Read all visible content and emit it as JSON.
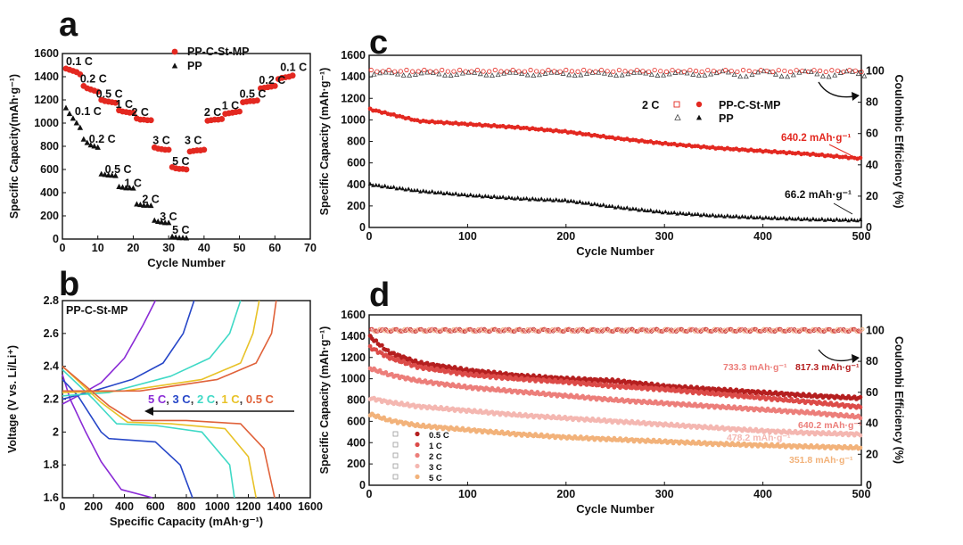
{
  "colors": {
    "red": "#e32820",
    "black": "#111111",
    "c05": "#b51f1f",
    "c1": "#dc4b48",
    "c2": "#ec7e7a",
    "c3": "#f4b7b1",
    "c5": "#f2b27a",
    "gray": "#888888",
    "purple": "#8a2bd6",
    "blue": "#2747c8",
    "teal": "#3fd9c6",
    "yellow": "#e8c227",
    "orange": "#e0623a"
  },
  "chart_data": [
    {
      "panel": "a",
      "type": "scatter",
      "xlabel": "Cycle Number",
      "ylabel": "Specific Capacity(mAh·g⁻¹)",
      "xlim": [
        0,
        70
      ],
      "ylim": [
        0,
        1600
      ],
      "xticks": [
        0,
        10,
        20,
        30,
        40,
        50,
        60,
        70
      ],
      "yticks": [
        0,
        200,
        400,
        600,
        800,
        1000,
        1200,
        1400,
        1600
      ],
      "legend": [
        "PP-C-St-MP",
        "PP"
      ],
      "series": [
        {
          "name": "PP-C-St-MP",
          "marker": "circle",
          "blocks": [
            {
              "rate": "0.1 C",
              "x0": 1,
              "vals": [
                1470,
                1460,
                1450,
                1440,
                1420
              ]
            },
            {
              "rate": "0.2 C",
              "x0": 6,
              "vals": [
                1320,
                1300,
                1290,
                1280,
                1270
              ]
            },
            {
              "rate": "0.5 C",
              "x0": 11,
              "vals": [
                1200,
                1190,
                1185,
                1180,
                1175
              ]
            },
            {
              "rate": "1 C",
              "x0": 16,
              "vals": [
                1110,
                1100,
                1095,
                1090,
                1090
              ]
            },
            {
              "rate": "2 C",
              "x0": 21,
              "vals": [
                1040,
                1030,
                1030,
                1025,
                1025
              ]
            },
            {
              "rate": "3 C",
              "x0": 26,
              "vals": [
                790,
                780,
                775,
                770,
                770
              ]
            },
            {
              "rate": "5 C",
              "x0": 31,
              "vals": [
                620,
                610,
                605,
                605,
                600
              ]
            },
            {
              "rate": "3 C",
              "x0": 36,
              "vals": [
                755,
                760,
                765,
                765,
                770
              ]
            },
            {
              "rate": "2 C",
              "x0": 41,
              "vals": [
                1020,
                1025,
                1030,
                1030,
                1035
              ]
            },
            {
              "rate": "1 C",
              "x0": 46,
              "vals": [
                1080,
                1085,
                1090,
                1095,
                1100
              ]
            },
            {
              "rate": "0.5 C",
              "x0": 51,
              "vals": [
                1180,
                1185,
                1190,
                1190,
                1195
              ]
            },
            {
              "rate": "0.2 C",
              "x0": 56,
              "vals": [
                1300,
                1305,
                1310,
                1315,
                1320
              ]
            },
            {
              "rate": "0.1 C",
              "x0": 61,
              "vals": [
                1380,
                1390,
                1395,
                1400,
                1410
              ]
            }
          ]
        },
        {
          "name": "PP",
          "marker": "triangle",
          "blocks": [
            {
              "rate": "0.1 C",
              "x0": 1,
              "vals": [
                1130,
                1080,
                1040,
                1000,
                960
              ]
            },
            {
              "rate": "0.2 C",
              "x0": 6,
              "vals": [
                860,
                830,
                810,
                800,
                790
              ]
            },
            {
              "rate": "0.5 C",
              "x0": 11,
              "vals": [
                560,
                555,
                550,
                548,
                545
              ]
            },
            {
              "rate": "1 C",
              "x0": 16,
              "vals": [
                450,
                445,
                440,
                440,
                438
              ]
            },
            {
              "rate": "2 C",
              "x0": 21,
              "vals": [
                300,
                295,
                290,
                290,
                288
              ]
            },
            {
              "rate": "3 C",
              "x0": 26,
              "vals": [
                160,
                150,
                145,
                140,
                140
              ]
            },
            {
              "rate": "5 C",
              "x0": 31,
              "vals": [
                20,
                15,
                10,
                10,
                8
              ]
            }
          ]
        }
      ],
      "rate_labels": [
        {
          "text": "0.1 C",
          "x": 1,
          "y": 1500
        },
        {
          "text": "0.2 C",
          "x": 5,
          "y": 1350
        },
        {
          "text": "0.5 C",
          "x": 9.5,
          "y": 1220
        },
        {
          "text": "1 C",
          "x": 15,
          "y": 1130
        },
        {
          "text": "2 C",
          "x": 19.5,
          "y": 1060
        },
        {
          "text": "3 C",
          "x": 25.5,
          "y": 820
        },
        {
          "text": "5 C",
          "x": 31,
          "y": 640
        },
        {
          "text": "3 C",
          "x": 34.5,
          "y": 820
        },
        {
          "text": "2 C",
          "x": 40,
          "y": 1060
        },
        {
          "text": "1 C",
          "x": 45,
          "y": 1120
        },
        {
          "text": "0.5 C",
          "x": 50,
          "y": 1220
        },
        {
          "text": "0.2 C",
          "x": 55.5,
          "y": 1340
        },
        {
          "text": "0.1 C",
          "x": 61.5,
          "y": 1450
        },
        {
          "text": "0.1 C",
          "x": 3.5,
          "y": 1070
        },
        {
          "text": "0.2 C",
          "x": 7.5,
          "y": 830
        },
        {
          "text": "0.5 C",
          "x": 12,
          "y": 570
        },
        {
          "text": "1 C",
          "x": 17.5,
          "y": 450
        },
        {
          "text": "2 C",
          "x": 22.5,
          "y": 310
        },
        {
          "text": "3 C",
          "x": 27.5,
          "y": 160
        },
        {
          "text": "5 C",
          "x": 31,
          "y": 45
        }
      ]
    },
    {
      "panel": "b",
      "type": "line",
      "title": "PP-C-St-MP",
      "xlabel": "Specific Capacity (mAh·g⁻¹)",
      "ylabel": "Voltage (V vs. Li/Li⁺)",
      "xlim": [
        0,
        1600
      ],
      "ylim": [
        1.6,
        2.8
      ],
      "xticks": [
        0,
        200,
        400,
        600,
        800,
        1000,
        1200,
        1400,
        1600
      ],
      "yticks": [
        1.6,
        1.8,
        2.0,
        2.2,
        2.4,
        2.6,
        2.8
      ],
      "annotation": {
        "parts": [
          "5 C",
          ", ",
          "3 C",
          ", ",
          "2 C",
          ", ",
          "1 C",
          ", ",
          "0.5 C"
        ]
      },
      "series": [
        {
          "name": "5 C",
          "color": "#8a2bd6",
          "charge": [
            [
              0,
              2.17
            ],
            [
              100,
              2.22
            ],
            [
              250,
              2.3
            ],
            [
              400,
              2.45
            ],
            [
              520,
              2.65
            ],
            [
              600,
              2.8
            ]
          ],
          "discharge": [
            [
              0,
              2.35
            ],
            [
              50,
              2.2
            ],
            [
              150,
              2.0
            ],
            [
              250,
              1.82
            ],
            [
              380,
              1.65
            ],
            [
              580,
              1.6
            ]
          ]
        },
        {
          "name": "3 C",
          "color": "#2747c8",
          "charge": [
            [
              0,
              2.2
            ],
            [
              200,
              2.25
            ],
            [
              450,
              2.32
            ],
            [
              650,
              2.42
            ],
            [
              780,
              2.6
            ],
            [
              850,
              2.8
            ]
          ],
          "discharge": [
            [
              0,
              2.32
            ],
            [
              100,
              2.22
            ],
            [
              250,
              2.0
            ],
            [
              300,
              1.96
            ],
            [
              600,
              1.94
            ],
            [
              760,
              1.8
            ],
            [
              840,
              1.6
            ]
          ]
        },
        {
          "name": "2 C",
          "color": "#3fd9c6",
          "charge": [
            [
              0,
              2.22
            ],
            [
              300,
              2.24
            ],
            [
              700,
              2.34
            ],
            [
              950,
              2.45
            ],
            [
              1080,
              2.6
            ],
            [
              1150,
              2.8
            ]
          ],
          "discharge": [
            [
              0,
              2.38
            ],
            [
              200,
              2.2
            ],
            [
              350,
              2.05
            ],
            [
              600,
              2.04
            ],
            [
              900,
              2.0
            ],
            [
              1080,
              1.8
            ],
            [
              1110,
              1.6
            ]
          ]
        },
        {
          "name": "1 C",
          "color": "#e8c227",
          "charge": [
            [
              0,
              2.24
            ],
            [
              400,
              2.25
            ],
            [
              900,
              2.32
            ],
            [
              1150,
              2.42
            ],
            [
              1230,
              2.6
            ],
            [
              1270,
              2.8
            ]
          ],
          "discharge": [
            [
              0,
              2.4
            ],
            [
              250,
              2.18
            ],
            [
              420,
              2.06
            ],
            [
              700,
              2.05
            ],
            [
              1050,
              2.02
            ],
            [
              1200,
              1.85
            ],
            [
              1250,
              1.6
            ]
          ]
        },
        {
          "name": "0.5 C",
          "color": "#e0623a",
          "charge": [
            [
              0,
              2.25
            ],
            [
              500,
              2.25
            ],
            [
              1000,
              2.32
            ],
            [
              1250,
              2.42
            ],
            [
              1350,
              2.6
            ],
            [
              1380,
              2.8
            ]
          ],
          "discharge": [
            [
              0,
              2.4
            ],
            [
              300,
              2.16
            ],
            [
              450,
              2.07
            ],
            [
              800,
              2.07
            ],
            [
              1150,
              2.05
            ],
            [
              1300,
              1.9
            ],
            [
              1370,
              1.6
            ]
          ]
        }
      ]
    },
    {
      "panel": "c",
      "type": "scatter",
      "xlabel": "Cycle Number",
      "ylabel": "Specific Capacity (mAh·g⁻¹)",
      "y2label": "Coulombic Efficiency (%)",
      "xlim": [
        0,
        500
      ],
      "ylim": [
        0,
        1600
      ],
      "y2lim": [
        0,
        110
      ],
      "xticks": [
        0,
        100,
        200,
        300,
        400,
        500
      ],
      "yticks": [
        0,
        200,
        400,
        600,
        800,
        1000,
        1200,
        1400,
        1600
      ],
      "y2ticks": [
        0,
        20,
        40,
        60,
        80,
        100
      ],
      "legend_title": "2 C",
      "series": [
        {
          "name": "PP-C-St-MP",
          "color": "#e32820",
          "x": [
            0,
            50,
            100,
            150,
            200,
            250,
            300,
            350,
            400,
            450,
            500
          ],
          "capacity": [
            1100,
            990,
            960,
            930,
            890,
            830,
            780,
            740,
            710,
            680,
            640
          ]
        },
        {
          "name": "PP",
          "color": "#111111",
          "x": [
            0,
            50,
            100,
            150,
            200,
            250,
            300,
            350,
            400,
            450,
            500
          ],
          "capacity": [
            400,
            340,
            300,
            270,
            250,
            190,
            140,
            110,
            90,
            75,
            66
          ]
        }
      ],
      "efficiency": {
        "PP-C-St-MP": 100,
        "PP": 98
      },
      "annotations": [
        {
          "text": "640.2 mAh·g⁻¹",
          "series": "PP-C-St-MP"
        },
        {
          "text": "66.2 mAh·g⁻¹",
          "series": "PP"
        }
      ]
    },
    {
      "panel": "d",
      "type": "scatter",
      "xlabel": "Cycle Number",
      "ylabel": "Specific Capacity (mAh·g⁻¹)",
      "y2label": "Coulombi Efficiency (%)",
      "xlim": [
        0,
        500
      ],
      "ylim": [
        0,
        1600
      ],
      "y2lim": [
        0,
        110
      ],
      "xticks": [
        0,
        100,
        200,
        300,
        400,
        500
      ],
      "yticks": [
        0,
        200,
        400,
        600,
        800,
        1000,
        1200,
        1400,
        1600
      ],
      "y2ticks": [
        0,
        20,
        40,
        60,
        80,
        100
      ],
      "series": [
        {
          "name": "0.5 C",
          "color": "#b51f1f",
          "x": [
            0,
            20,
            50,
            100,
            150,
            200,
            250,
            300,
            350,
            400,
            450,
            500
          ],
          "capacity": [
            1400,
            1250,
            1150,
            1080,
            1030,
            1000,
            980,
            930,
            900,
            870,
            840,
            817
          ]
        },
        {
          "name": "1 C",
          "color": "#dc4b48",
          "x": [
            0,
            20,
            50,
            100,
            150,
            200,
            250,
            300,
            350,
            400,
            450,
            500
          ],
          "capacity": [
            1300,
            1200,
            1110,
            1040,
            1000,
            970,
            930,
            900,
            860,
            820,
            780,
            733
          ]
        },
        {
          "name": "2 C",
          "color": "#ec7e7a",
          "x": [
            0,
            20,
            50,
            100,
            150,
            200,
            250,
            300,
            350,
            400,
            450,
            500
          ],
          "capacity": [
            1100,
            1040,
            980,
            920,
            880,
            840,
            800,
            770,
            740,
            710,
            680,
            640
          ]
        },
        {
          "name": "3 C",
          "color": "#f4b7b1",
          "x": [
            0,
            20,
            50,
            100,
            150,
            200,
            250,
            300,
            350,
            400,
            450,
            500
          ],
          "capacity": [
            820,
            780,
            740,
            700,
            660,
            630,
            600,
            570,
            540,
            510,
            490,
            478
          ]
        },
        {
          "name": "5 C",
          "color": "#f2b27a",
          "x": [
            0,
            20,
            50,
            100,
            150,
            200,
            250,
            300,
            350,
            400,
            450,
            500
          ],
          "capacity": [
            670,
            610,
            560,
            520,
            480,
            450,
            430,
            410,
            390,
            375,
            362,
            352
          ]
        }
      ],
      "efficiency": 100,
      "annotations": [
        {
          "text": "733.3 mAh·g⁻¹",
          "series": "1 C"
        },
        {
          "text": "817.3 mAh·g⁻¹",
          "series": "0.5 C"
        },
        {
          "text": "640.2 mAh·g⁻¹",
          "series": "2 C"
        },
        {
          "text": "478.2 mAh·g⁻¹",
          "series": "3 C"
        },
        {
          "text": "351.8 mAh·g⁻¹",
          "series": "5 C"
        }
      ]
    }
  ]
}
